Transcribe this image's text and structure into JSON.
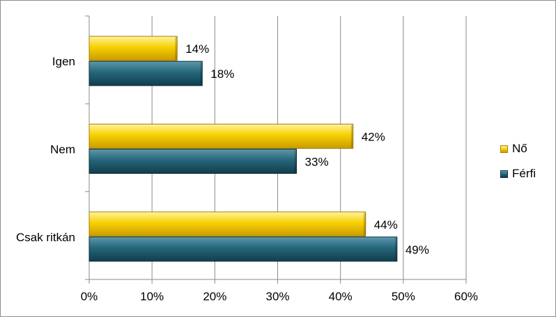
{
  "chart_data": {
    "type": "bar",
    "orientation": "horizontal",
    "categories": [
      "Igen",
      "Nem",
      "Csak ritkán"
    ],
    "series": [
      {
        "name": "Nő",
        "values": [
          14,
          42,
          44
        ],
        "labels": [
          "14%",
          "42%",
          "44%"
        ],
        "color": "#f2c200"
      },
      {
        "name": "Férfi",
        "values": [
          18,
          33,
          49
        ],
        "labels": [
          "18%",
          "33%",
          "49%"
        ],
        "color": "#1f5b6e"
      }
    ],
    "xlim": [
      0,
      60
    ],
    "x_ticks": [
      0,
      10,
      20,
      30,
      40,
      50,
      60
    ],
    "x_tick_labels": [
      "0%",
      "10%",
      "20%",
      "30%",
      "40%",
      "50%",
      "60%"
    ],
    "title": "",
    "xlabel": "",
    "ylabel": "",
    "grid": "vertical",
    "legend_position": "right"
  },
  "legend": {
    "items": [
      {
        "label": "Nő",
        "color": "#f2c200"
      },
      {
        "label": "Férfi",
        "color": "#1f5b6e"
      }
    ]
  }
}
